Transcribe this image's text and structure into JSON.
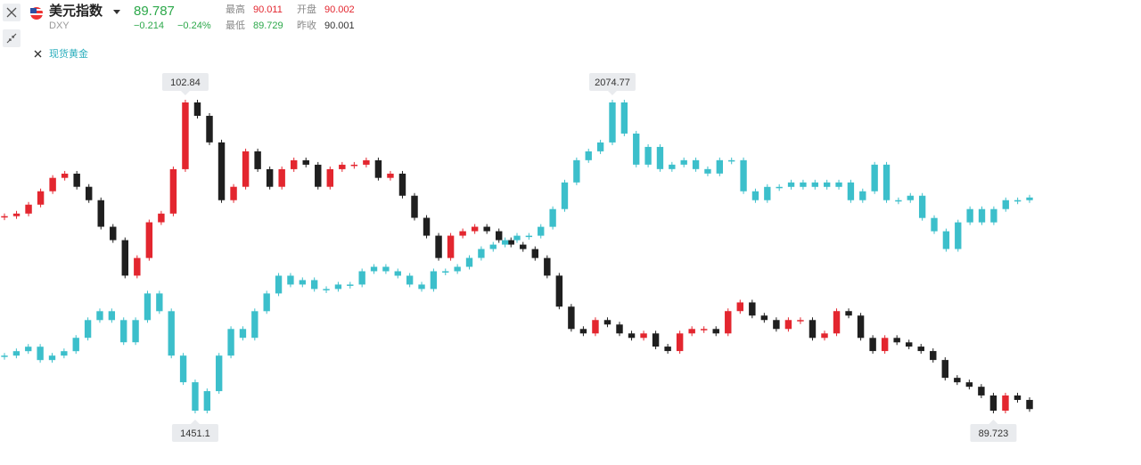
{
  "header": {
    "title": "美元指数",
    "symbol": "DXY",
    "price": 89.787,
    "change": "−0.214",
    "change_pct": "−0.24%",
    "stats": [
      {
        "label": "最高",
        "value": 90.011
      },
      {
        "label": "开盘",
        "value": 90.002
      },
      {
        "label": "最低",
        "value": 89.729
      },
      {
        "label": "昨收",
        "value": 90.001
      }
    ],
    "overlay": "现货黄金"
  },
  "chart_data": {
    "type": "candlestick",
    "series": [
      {
        "name": "美元指数",
        "up_color": "#e3262f",
        "down_color": "#1f1f1f",
        "ylim": [
          89.723,
          102.84
        ],
        "high_label": 102.84,
        "low_label": 89.723,
        "values": [
          98.0,
          98.11,
          98.49,
          99.06,
          99.63,
          99.81,
          99.25,
          98.68,
          97.55,
          96.98,
          95.47,
          96.22,
          97.74,
          98.11,
          100.0,
          102.84,
          102.27,
          101.14,
          98.68,
          99.25,
          100.76,
          100.0,
          99.25,
          100.0,
          100.38,
          100.19,
          99.25,
          100.0,
          100.19,
          100.19,
          100.38,
          99.63,
          99.81,
          98.87,
          97.93,
          97.17,
          96.22,
          97.17,
          97.36,
          97.55,
          97.36,
          96.98,
          96.79,
          96.6,
          96.22,
          95.47,
          94.15,
          93.2,
          93.01,
          93.58,
          93.39,
          93.01,
          92.82,
          93.01,
          92.45,
          92.26,
          93.01,
          93.2,
          93.2,
          93.01,
          93.96,
          94.33,
          93.77,
          93.58,
          93.2,
          93.58,
          93.58,
          92.82,
          93.01,
          93.96,
          93.77,
          92.82,
          92.26,
          92.82,
          92.63,
          92.45,
          92.26,
          91.88,
          91.12,
          90.93,
          90.74,
          90.37,
          89.723,
          90.37,
          90.18,
          89.79
        ]
      },
      {
        "name": "现货黄金",
        "up_color": "#3cbfcb",
        "down_color": "#3cbfcb",
        "ylim": [
          1451.1,
          2074.77
        ],
        "high_label": 2074.77,
        "low_label": 1451.1,
        "values": [
          1562.5,
          1571.5,
          1580.5,
          1553.5,
          1562.5,
          1571.5,
          1598.5,
          1634.4,
          1652.4,
          1634.4,
          1589.5,
          1634.4,
          1688.3,
          1652.4,
          1562.5,
          1508.6,
          1451.1,
          1490.6,
          1562.5,
          1616.4,
          1598.5,
          1652.4,
          1688.3,
          1724.2,
          1706.3,
          1715.3,
          1697.3,
          1697.3,
          1706.3,
          1706.3,
          1733.2,
          1742.2,
          1733.2,
          1724.2,
          1706.3,
          1697.3,
          1733.2,
          1733.2,
          1742.2,
          1760.2,
          1778.2,
          1787.1,
          1796.1,
          1805.1,
          1805.1,
          1823.1,
          1859.0,
          1912.9,
          1957.9,
          1975.8,
          1993.8,
          2074.77,
          2011.8,
          1948.9,
          1984.8,
          1939.9,
          1948.9,
          1957.9,
          1939.9,
          1930.9,
          1957.9,
          1957.9,
          1895.0,
          1877.0,
          1903.9,
          1903.9,
          1912.9,
          1903.9,
          1912.9,
          1903.9,
          1912.9,
          1877.0,
          1895.0,
          1948.9,
          1877.0,
          1877.0,
          1886.0,
          1841.0,
          1814.1,
          1778.2,
          1832.1,
          1859.0,
          1832.1,
          1859.0,
          1877.0,
          1877.0,
          1882.4
        ]
      }
    ]
  }
}
